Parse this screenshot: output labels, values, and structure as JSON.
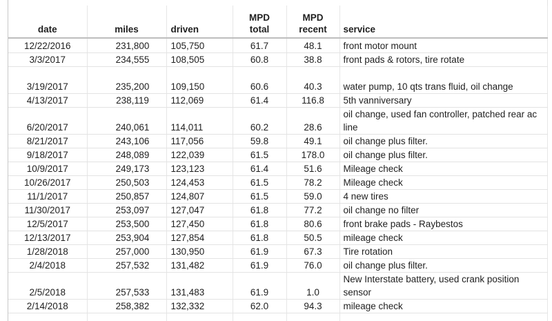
{
  "columns": {
    "date": "date",
    "miles": "miles",
    "driven": "driven",
    "mpd_total_line1": "MPD",
    "mpd_total_line2": "total",
    "mpd_recent_line1": "MPD",
    "mpd_recent_line2": "recent",
    "service": "service"
  },
  "rows": [
    {
      "date": "12/22/2016",
      "miles": "231,800",
      "driven": "105,750",
      "mpd_total": "61.7",
      "mpd_recent": "48.1",
      "service": "front motor mount"
    },
    {
      "date": "3/3/2017",
      "miles": "234,555",
      "driven": "108,505",
      "mpd_total": "60.8",
      "mpd_recent": "38.8",
      "service": "front pads & rotors, tire rotate"
    },
    {
      "date": "3/19/2017",
      "miles": "235,200",
      "driven": "109,150",
      "mpd_total": "60.6",
      "mpd_recent": "40.3",
      "service": "water pump, 10 qts trans fluid, oil change"
    },
    {
      "date": "4/13/2017",
      "miles": "238,119",
      "driven": "112,069",
      "mpd_total": "61.4",
      "mpd_recent": "116.8",
      "service": "5th vanniversary"
    },
    {
      "date": "6/20/2017",
      "miles": "240,061",
      "driven": "114,011",
      "mpd_total": "60.2",
      "mpd_recent": "28.6",
      "service": "oil change, used fan controller, patched rear ac line"
    },
    {
      "date": "8/21/2017",
      "miles": "243,106",
      "driven": "117,056",
      "mpd_total": "59.8",
      "mpd_recent": "49.1",
      "service": "oil change plus filter."
    },
    {
      "date": "9/18/2017",
      "miles": "248,089",
      "driven": "122,039",
      "mpd_total": "61.5",
      "mpd_recent": "178.0",
      "service": "oil change plus filter."
    },
    {
      "date": "10/9/2017",
      "miles": "249,173",
      "driven": "123,123",
      "mpd_total": "61.4",
      "mpd_recent": "51.6",
      "service": "Mileage check"
    },
    {
      "date": "10/26/2017",
      "miles": "250,503",
      "driven": "124,453",
      "mpd_total": "61.5",
      "mpd_recent": "78.2",
      "service": "Mileage check"
    },
    {
      "date": "11/1/2017",
      "miles": "250,857",
      "driven": "124,807",
      "mpd_total": "61.5",
      "mpd_recent": "59.0",
      "service": "4 new tires"
    },
    {
      "date": "11/30/2017",
      "miles": "253,097",
      "driven": "127,047",
      "mpd_total": "61.8",
      "mpd_recent": "77.2",
      "service": "oil change no filter"
    },
    {
      "date": "12/5/2017",
      "miles": "253,500",
      "driven": "127,450",
      "mpd_total": "61.8",
      "mpd_recent": "80.6",
      "service": "front brake pads - Raybestos"
    },
    {
      "date": "12/13/2017",
      "miles": "253,904",
      "driven": "127,854",
      "mpd_total": "61.8",
      "mpd_recent": "50.5",
      "service": "mileage check"
    },
    {
      "date": "1/28/2018",
      "miles": "257,000",
      "driven": "130,950",
      "mpd_total": "61.9",
      "mpd_recent": "67.3",
      "service": "Tire rotation"
    },
    {
      "date": "2/4/2018",
      "miles": "257,532",
      "driven": "131,482",
      "mpd_total": "61.9",
      "mpd_recent": "76.0",
      "service": "oil change plus filter."
    },
    {
      "date": "2/5/2018",
      "miles": "257,533",
      "driven": "131,483",
      "mpd_total": "61.9",
      "mpd_recent": "1.0",
      "service": "New Interstate battery, used crank position sensor"
    },
    {
      "date": "2/14/2018",
      "miles": "258,382",
      "driven": "132,332",
      "mpd_total": "62.0",
      "mpd_recent": "94.3",
      "service": "mileage check"
    }
  ]
}
